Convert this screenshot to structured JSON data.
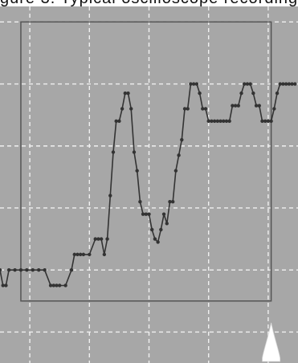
{
  "header": {
    "caption_fragment": "gure 3. Typical oscilloscope recording"
  },
  "colors": {
    "background": "#ffffff",
    "screen": "#a7a7a7",
    "grid": "#f0f0f0",
    "frame": "#555555",
    "trace": "#333333",
    "marker": "#ffffff"
  },
  "icons": {
    "trigger_marker": "trigger-arrow-icon"
  },
  "chart_data": {
    "type": "line",
    "title": "",
    "xlabel": "",
    "ylabel": "",
    "grid": true,
    "legend": "none",
    "xlim": [
      0,
      10
    ],
    "ylim": [
      -0.5,
      5.25
    ],
    "grid_x": [
      1,
      3,
      5,
      7,
      9
    ],
    "grid_y": [
      0,
      1,
      2,
      3,
      4,
      5
    ],
    "frame_x": [
      0.7,
      9.1
    ],
    "frame_y": [
      0.5,
      5
    ],
    "trigger_x": 9.1,
    "series": [
      {
        "x": [
          0.0,
          0.1,
          0.2,
          0.3,
          0.5,
          0.7,
          0.9,
          1.1,
          1.3,
          1.5,
          1.7,
          1.8,
          1.9,
          2.0,
          2.2,
          2.4,
          2.5,
          2.6,
          2.7,
          2.8,
          3.0,
          3.2,
          3.3,
          3.4,
          3.5,
          3.6,
          3.7,
          3.8,
          3.9,
          4.0,
          4.1,
          4.2,
          4.3,
          4.4,
          4.5,
          4.6,
          4.7,
          4.8,
          4.9,
          5.0,
          5.1,
          5.2,
          5.3,
          5.4,
          5.5,
          5.6,
          5.7,
          5.8,
          5.9,
          6.0,
          6.1,
          6.2,
          6.3,
          6.4,
          6.5,
          6.6,
          6.7,
          6.8,
          6.9,
          7.0,
          7.1,
          7.2,
          7.3,
          7.4,
          7.5,
          7.6,
          7.7,
          7.8,
          7.9,
          8.0,
          8.1,
          8.2,
          8.3,
          8.4,
          8.5,
          8.6,
          8.7,
          8.8,
          8.9,
          9.0,
          9.1,
          9.2,
          9.3,
          9.4,
          9.5,
          9.6,
          9.7,
          9.8,
          9.9
        ],
        "y": [
          1.0,
          0.75,
          0.75,
          1.0,
          1.0,
          1.0,
          1.0,
          1.0,
          1.0,
          1.0,
          0.75,
          0.75,
          0.75,
          0.75,
          0.75,
          1.0,
          1.25,
          1.25,
          1.25,
          1.25,
          1.25,
          1.5,
          1.5,
          1.5,
          1.25,
          1.5,
          2.2,
          2.9,
          3.4,
          3.4,
          3.6,
          3.85,
          3.85,
          3.6,
          2.9,
          2.6,
          2.1,
          1.9,
          1.9,
          1.9,
          1.65,
          1.5,
          1.45,
          1.65,
          1.9,
          1.75,
          2.1,
          2.1,
          2.6,
          2.85,
          3.1,
          3.6,
          3.6,
          4.0,
          4.0,
          4.0,
          3.85,
          3.6,
          3.6,
          3.4,
          3.4,
          3.4,
          3.4,
          3.4,
          3.4,
          3.4,
          3.4,
          3.65,
          3.65,
          3.65,
          3.85,
          4.0,
          4.0,
          4.0,
          3.85,
          3.65,
          3.65,
          3.4,
          3.4,
          3.4,
          3.4,
          3.6,
          3.85,
          4.0,
          4.0,
          4.0,
          4.0,
          4.0,
          4.0
        ]
      }
    ]
  }
}
